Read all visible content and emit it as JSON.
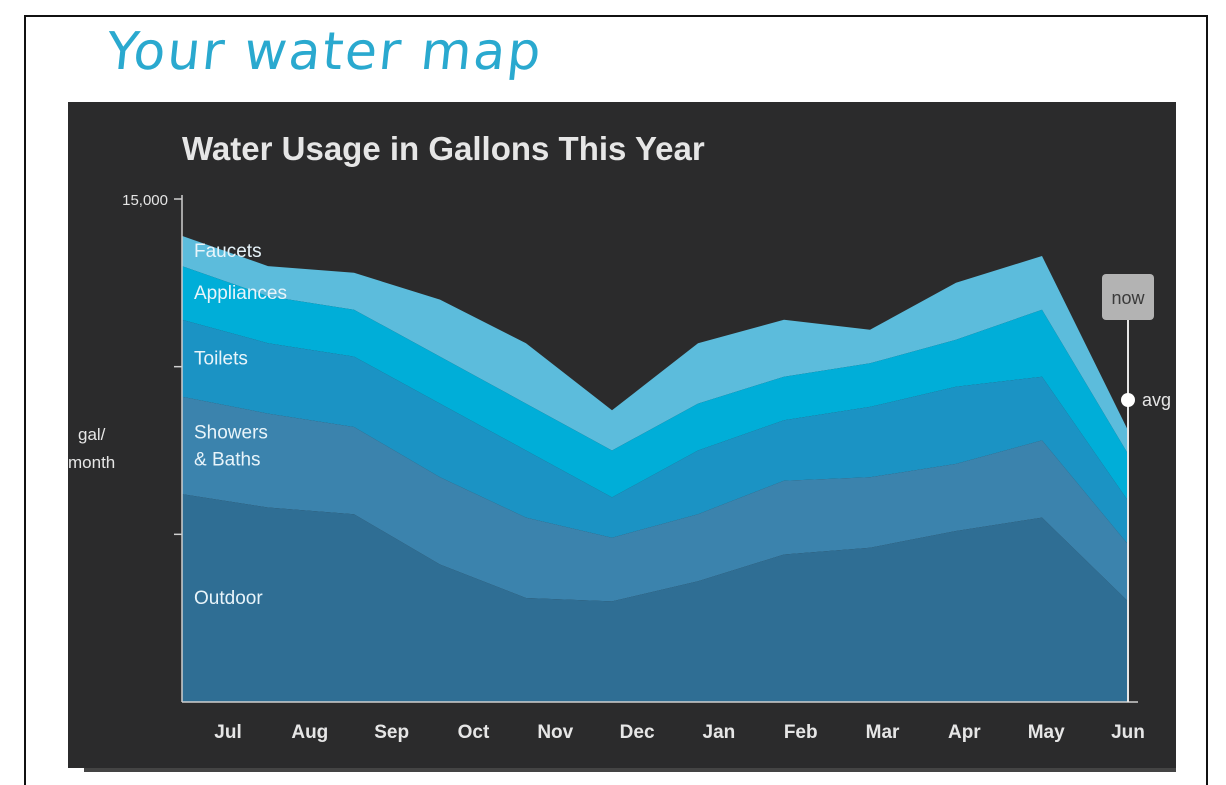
{
  "header": {
    "title": "Your water map"
  },
  "colors": {
    "panel_bg": "#2b2b2c",
    "axis": "#cfcfcf",
    "text": "#e6e6e6",
    "outdoor": "#2f6e94",
    "showers_baths": "#3b83ad",
    "toilets": "#1b93c4",
    "appliances": "#00aed8",
    "faucets": "#5cbcdc",
    "marker_box": "#b3b3b3"
  },
  "chart_data": {
    "type": "area",
    "stacked": true,
    "title": "Water Usage in Gallons This Year",
    "ylabel": "gal/\nmonth",
    "xlabel": "",
    "ylim": [
      0,
      15000
    ],
    "yticks": [
      15000
    ],
    "ytick_labels": [
      "15,000"
    ],
    "categories": [
      "Jul",
      "Aug",
      "Sep",
      "Oct",
      "Nov",
      "Dec",
      "Jan",
      "Feb",
      "Mar",
      "Apr",
      "May",
      "Jun"
    ],
    "series": [
      {
        "name": "Outdoor",
        "values": [
          6200,
          5800,
          5600,
          4100,
          3100,
          3000,
          3600,
          4400,
          4600,
          5100,
          5500,
          3000
        ]
      },
      {
        "name": "Showers\n& Baths",
        "values": [
          2900,
          2800,
          2600,
          2600,
          2400,
          1900,
          2000,
          2200,
          2100,
          2000,
          2300,
          1700
        ]
      },
      {
        "name": "Toilets",
        "values": [
          2300,
          2100,
          2100,
          2200,
          2000,
          1200,
          1900,
          1800,
          2100,
          2300,
          1900,
          1300
        ]
      },
      {
        "name": "Appliances",
        "values": [
          1600,
          1400,
          1400,
          1400,
          1400,
          1400,
          1400,
          1300,
          1300,
          1400,
          2000,
          1400
        ]
      },
      {
        "name": "Faucets",
        "values": [
          900,
          900,
          1100,
          1700,
          1800,
          1200,
          1800,
          1700,
          1000,
          1700,
          1600,
          700
        ]
      }
    ],
    "marker": {
      "label": "now",
      "note": "avg"
    }
  }
}
